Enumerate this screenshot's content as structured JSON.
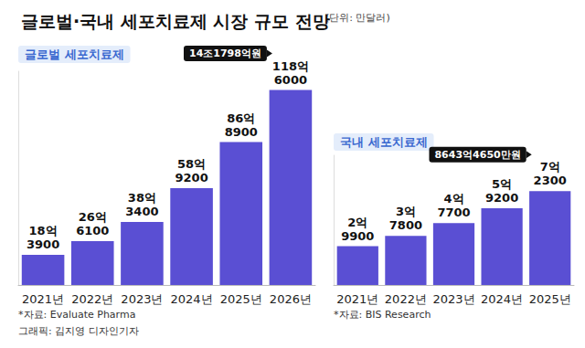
{
  "title": "글로벌·국내 세포치료제 시장 규모 전망",
  "unit_note": "(단위: 만달러)",
  "credit": "그래픽: 김지영 디자인기자",
  "chart_data": [
    {
      "type": "bar",
      "title": "글로벌 세포치료제",
      "categories": [
        "2021년",
        "2022년",
        "2023년",
        "2024년",
        "2025년",
        "2026년"
      ],
      "values": [
        183900,
        266100,
        383400,
        589200,
        868900,
        1186000
      ],
      "value_labels": [
        "18억\n3900",
        "26억\n6100",
        "38억\n3400",
        "58억\n9200",
        "86억\n8900",
        "118억\n6000"
      ],
      "color": "#5a4fd3",
      "ylim": [
        0,
        1300000
      ],
      "grid": false,
      "tick_labels": "x",
      "data_labels": true,
      "annotations": [
        {
          "category": "2026년",
          "text": "14조1798억원"
        }
      ],
      "source": "*자료: Evaluate Pharma"
    },
    {
      "type": "bar",
      "title": "국내 세포치료제",
      "categories": [
        "2021년",
        "2022년",
        "2023년",
        "2024년",
        "2025년"
      ],
      "values": [
        29900,
        37800,
        47700,
        59200,
        72300
      ],
      "value_labels": [
        "2억\n9900",
        "3억\n7800",
        "4억\n7700",
        "5억\n9200",
        "7억\n2300"
      ],
      "color": "#5a4fd3",
      "ylim": [
        0,
        100000
      ],
      "grid": false,
      "tick_labels": "x",
      "data_labels": true,
      "annotations": [
        {
          "category": "2025년",
          "text": "8643억4650만원"
        }
      ],
      "source": "*자료: BIS Research"
    }
  ]
}
